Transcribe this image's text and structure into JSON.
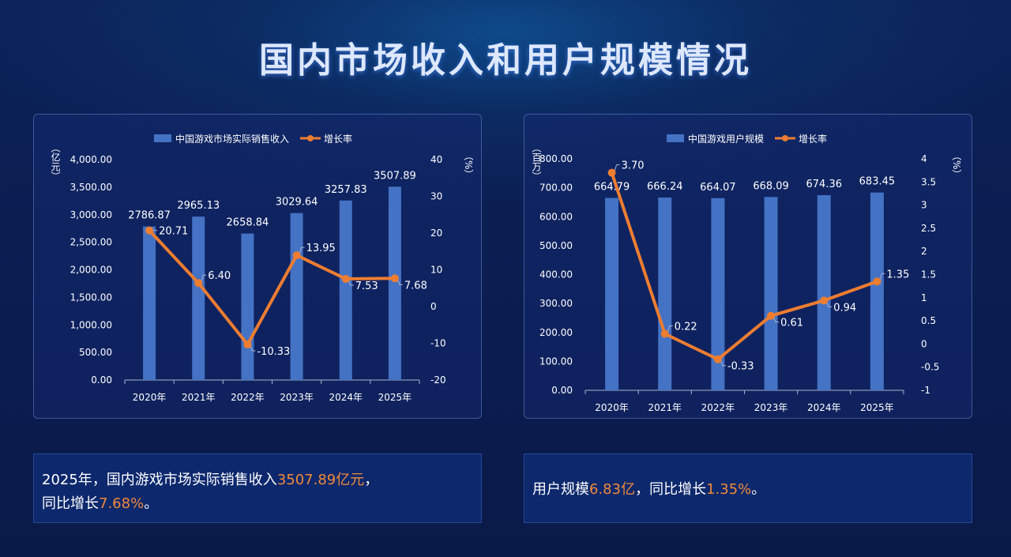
{
  "title": "国内市场收入和用户规模情况",
  "colors": {
    "bar": "#4472c4",
    "line": "#ed7d31",
    "highlight": "#f08a3a"
  },
  "chart_data": [
    {
      "type": "bar+line",
      "categories": [
        "2020年",
        "2021年",
        "2022年",
        "2023年",
        "2024年",
        "2025年"
      ],
      "series": [
        {
          "name": "中国游戏市场实际销售收入",
          "type": "bar",
          "axis": "left",
          "values": [
            2786.87,
            2965.13,
            2658.84,
            3029.64,
            3257.83,
            3507.89
          ],
          "labels": [
            "2786.87",
            "2965.13",
            "2658.84",
            "3029.64",
            "3257.83",
            "3507.89"
          ]
        },
        {
          "name": "增长率",
          "type": "line",
          "axis": "right",
          "values": [
            20.71,
            6.4,
            -10.33,
            13.95,
            7.53,
            7.68
          ],
          "labels": [
            "20.71",
            "6.40",
            "-10.33",
            "13.95",
            "7.53",
            "7.68"
          ]
        }
      ],
      "ylabel": "（亿元）",
      "y2label": "（%）",
      "ylim": [
        0,
        4000
      ],
      "y2lim": [
        -20,
        40
      ],
      "yticks": [
        "0.00",
        "500.00",
        "1,000.00",
        "1,500.00",
        "2,000.00",
        "2,500.00",
        "3,000.00",
        "3,500.00",
        "4,000.00"
      ],
      "y2ticks": [
        "-20",
        "-10",
        "0",
        "10",
        "20",
        "30",
        "40"
      ],
      "legend": "top",
      "grid": false
    },
    {
      "type": "bar+line",
      "categories": [
        "2020年",
        "2021年",
        "2022年",
        "2023年",
        "2024年",
        "2025年"
      ],
      "series": [
        {
          "name": "中国游戏用户规模",
          "type": "bar",
          "axis": "left",
          "values": [
            664.79,
            666.24,
            664.07,
            668.09,
            674.36,
            683.45
          ],
          "labels": [
            "664.79",
            "666.24",
            "664.07",
            "668.09",
            "674.36",
            "683.45"
          ]
        },
        {
          "name": "增长率",
          "type": "line",
          "axis": "right",
          "values": [
            3.7,
            0.22,
            -0.33,
            0.61,
            0.94,
            1.35
          ],
          "labels": [
            "3.70",
            "0.22",
            "-0.33",
            "0.61",
            "0.94",
            "1.35"
          ]
        }
      ],
      "ylabel": "（百万）",
      "y2label": "（%）",
      "ylim": [
        0,
        800
      ],
      "y2lim": [
        -1,
        4
      ],
      "yticks": [
        "0.00",
        "100.00",
        "200.00",
        "300.00",
        "400.00",
        "500.00",
        "600.00",
        "700.00",
        "800.00"
      ],
      "y2ticks": [
        "-1",
        "-0.5",
        "0",
        "0.5",
        "1",
        "1.5",
        "2",
        "2.5",
        "3",
        "3.5",
        "4"
      ],
      "legend": "top",
      "grid": false
    }
  ],
  "notes": {
    "n1": {
      "a": "2025年，国内游戏市场实际销售收入",
      "b": "3507.89亿元",
      "c": "，",
      "d": "同比增长",
      "e": "7.68%",
      "f": "。"
    },
    "n2": {
      "a": "用户规模",
      "b": "6.83亿",
      "c": "，同比增长",
      "d": "1.35%",
      "e": "。"
    }
  }
}
